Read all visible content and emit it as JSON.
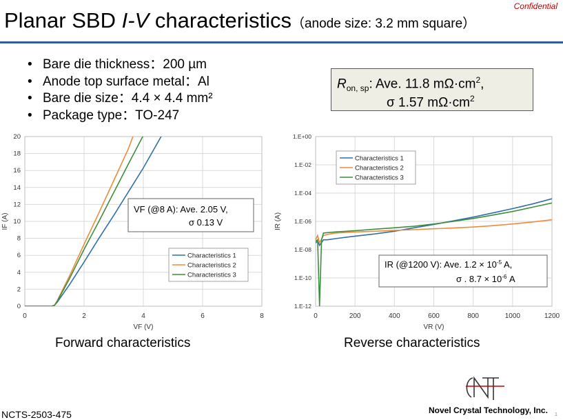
{
  "confidential": "Confidential",
  "title": {
    "main": "Planar SBD",
    "italic": "I-V",
    "rest": "characteristics",
    "sub": "（anode size: 3.2 mm square）"
  },
  "bullets": [
    "Bare die thickness：200 µm",
    "Anode top surface metal：Al",
    "Bare die size：4.4 × 4.4 mm²",
    "Package type：TO-247"
  ],
  "ron_box": {
    "r": "R",
    "sub": "on, sp",
    "line1_rest": ": Ave. 11.8 mΩ·cm",
    "sup1": "2",
    "line1_end": ",",
    "line2": "σ 1.57 mΩ·cm",
    "sup2": "2"
  },
  "colors": {
    "series1": "#2f6fa8",
    "series2": "#ee8b3a",
    "series3": "#3c8e3c",
    "title_rule": "#2e5c9a",
    "confidential": "#c00000"
  },
  "chart_data": [
    {
      "type": "line",
      "xlabel": "VF (V)",
      "ylabel": "IF (A)",
      "xlim": [
        0,
        8
      ],
      "ylim": [
        0,
        20
      ],
      "xticks": [
        "0",
        "2",
        "4",
        "6",
        "8"
      ],
      "yticks": [
        "0",
        "2",
        "4",
        "6",
        "8",
        "10",
        "12",
        "14",
        "16",
        "18",
        "20"
      ],
      "grid": true,
      "legend": "lower-right",
      "series": [
        {
          "name": "Characteristics 1",
          "x": [
            0,
            0.9,
            1.0,
            1.1,
            1.5,
            2.0,
            2.5,
            3.0,
            3.5,
            4.0,
            4.6
          ],
          "y": [
            0,
            0,
            0.1,
            0.5,
            2.5,
            5.2,
            8.0,
            10.7,
            13.5,
            16.3,
            20.0
          ]
        },
        {
          "name": "Characteristics 2",
          "x": [
            0,
            0.9,
            1.0,
            1.1,
            1.5,
            2.0,
            2.5,
            3.0,
            3.5,
            3.65
          ],
          "y": [
            0,
            0,
            0.1,
            0.7,
            3.5,
            7.3,
            11.0,
            14.8,
            18.6,
            20.0
          ]
        },
        {
          "name": "Characteristics 3",
          "x": [
            0,
            0.9,
            1.0,
            1.1,
            1.5,
            2.0,
            2.5,
            3.0,
            3.5,
            3.98
          ],
          "y": [
            0,
            0,
            0.1,
            0.6,
            3.2,
            6.7,
            10.0,
            13.4,
            16.8,
            20.0
          ]
        }
      ],
      "annotation": {
        "line1": "VF (@8 A): Ave. 2.05 V,",
        "line2": "σ 0.13 V"
      }
    },
    {
      "type": "line",
      "xlabel": "VR (V)",
      "ylabel": "IR (A)",
      "xlim": [
        0,
        1200
      ],
      "ylim": [
        1e-12,
        1
      ],
      "yscale": "log",
      "xticks": [
        "0",
        "200",
        "400",
        "600",
        "800",
        "1000",
        "1200"
      ],
      "yticks": [
        "1.E-12",
        "1.E-10",
        "1.E-08",
        "1.E-06",
        "1.E-04",
        "1.E-02",
        "1.E+00"
      ],
      "grid": true,
      "legend": "top-left",
      "series": [
        {
          "name": "Characteristics 1",
          "x": [
            0,
            10,
            20,
            40,
            60,
            100,
            200,
            300,
            400,
            500,
            600,
            700,
            800,
            900,
            1000,
            1100,
            1200
          ],
          "y": [
            3e-08,
            4e-08,
            2e-08,
            5e-08,
            5e-08,
            6e-08,
            9e-08,
            1.3e-07,
            2e-07,
            3.5e-07,
            6e-07,
            1.1e-06,
            2e-06,
            4e-06,
            8e-06,
            1.7e-05,
            4e-05
          ]
        },
        {
          "name": "Characteristics 2",
          "x": [
            0,
            10,
            20,
            40,
            60,
            100,
            200,
            300,
            400,
            500,
            600,
            700,
            800,
            900,
            1000,
            1100,
            1200
          ],
          "y": [
            5e-08,
            1e-07,
            3e-08,
            1e-07,
            1.2e-07,
            1.5e-07,
            1.8e-07,
            2e-07,
            2.3e-07,
            2.6e-07,
            3e-07,
            3.4e-07,
            4e-07,
            5e-07,
            6.5e-07,
            9e-07,
            1.3e-06
          ]
        },
        {
          "name": "Characteristics 3",
          "x": [
            0,
            10,
            20,
            30,
            40,
            60,
            100,
            200,
            300,
            400,
            500,
            600,
            700,
            800,
            900,
            1000,
            1100,
            1200
          ],
          "y": [
            4e-08,
            5e-08,
            1e-12,
            5e-08,
            1.5e-07,
            1.6e-07,
            1.8e-07,
            2.2e-07,
            2.8e-07,
            3.5e-07,
            4.5e-07,
            6.5e-07,
            1e-06,
            1.6e-06,
            2.8e-06,
            5e-06,
            1e-05,
            2e-05
          ]
        }
      ],
      "annotation": {
        "line1": "IR (@1200 V): Ave. 1.2 × 10",
        "sup1": "-5",
        "end1": " A,",
        "line2": "σ . 8.7 × 10",
        "sup2": "-6",
        "end2": " A"
      }
    }
  ],
  "captions": {
    "forward": "Forward characteristics",
    "reverse": "Reverse characteristics"
  },
  "footer": {
    "doc_id": "NCTS-2503-475",
    "company": "Novel Crystal Technology, Inc.",
    "page": "1"
  }
}
